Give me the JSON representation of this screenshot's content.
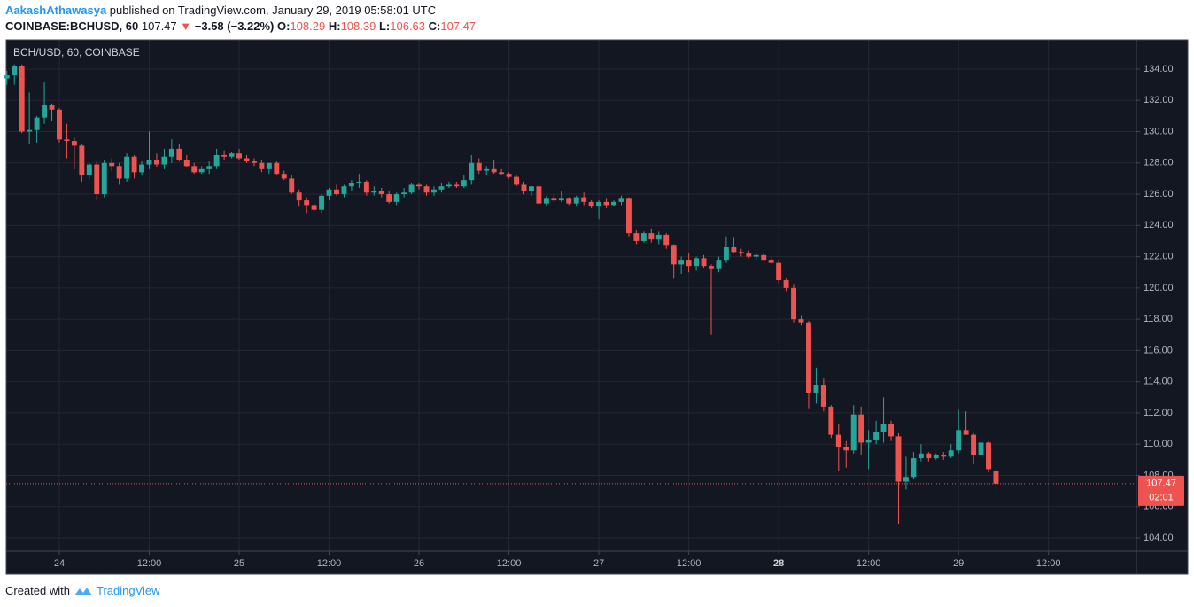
{
  "header": {
    "user": "AakashAthawasya",
    "published": "published on TradingView.com, January 29, 2019 05:58:01 UTC",
    "symbol": "COINBASE:BCHUSD, 60",
    "last": "107.47",
    "arrow": "▼",
    "change": "−3.58 (−3.22%)",
    "o_label": "O:",
    "h_label": "H:",
    "l_label": "L:",
    "c_label": "C:",
    "countdown": "02:01"
  },
  "footer": {
    "created": "Created with",
    "brand": "TradingView"
  },
  "chart_data": {
    "type": "candlestick",
    "title": "BCH/USD, 60, COINBASE",
    "up_color": "#26a69a",
    "down_color": "#ef5350",
    "background": "#131722",
    "grid": true,
    "ylim": [
      103.15,
      135.87
    ],
    "yticks": [
      {
        "value": 104,
        "label": "104.00"
      },
      {
        "value": 106,
        "label": "106.00"
      },
      {
        "value": 108,
        "label": "108.00"
      },
      {
        "value": 110,
        "label": "110.00"
      },
      {
        "value": 112,
        "label": "112.00"
      },
      {
        "value": 114,
        "label": "114.00"
      },
      {
        "value": 116,
        "label": "116.00"
      },
      {
        "value": 118,
        "label": "118.00"
      },
      {
        "value": 120,
        "label": "120.00"
      },
      {
        "value": 122,
        "label": "122.00"
      },
      {
        "value": 124,
        "label": "124.00"
      },
      {
        "value": 126,
        "label": "126.00"
      },
      {
        "value": 128,
        "label": "128.00"
      },
      {
        "value": 130,
        "label": "130.00"
      },
      {
        "value": 132,
        "label": "132.00"
      },
      {
        "value": 134,
        "label": "134.00"
      }
    ],
    "xlim": [
      -7.09,
      143.74
    ],
    "xticks": [
      {
        "value": 0,
        "label": "24"
      },
      {
        "value": 12,
        "label": "12:00"
      },
      {
        "value": 24,
        "label": "25"
      },
      {
        "value": 36,
        "label": "12:00"
      },
      {
        "value": 48,
        "label": "26"
      },
      {
        "value": 60,
        "label": "12:00"
      },
      {
        "value": 72,
        "label": "27"
      },
      {
        "value": 84,
        "label": "12:00"
      },
      {
        "value": 96,
        "label": "28",
        "bold": true
      },
      {
        "value": 108,
        "label": "12:00"
      },
      {
        "value": 120,
        "label": "29"
      },
      {
        "value": 132,
        "label": "12:00"
      }
    ],
    "candles": [
      {
        "t": -7,
        "o": 133.4,
        "h": 133.9,
        "l": 133.0,
        "c": 133.6
      },
      {
        "t": -6,
        "o": 133.6,
        "h": 134.3,
        "l": 133.0,
        "c": 134.2
      },
      {
        "t": -5,
        "o": 134.2,
        "h": 134.3,
        "l": 129.9,
        "c": 130.0
      },
      {
        "t": -4,
        "o": 130.0,
        "h": 132.5,
        "l": 129.2,
        "c": 130.1
      },
      {
        "t": -3,
        "o": 130.1,
        "h": 131.0,
        "l": 129.3,
        "c": 130.9
      },
      {
        "t": -2,
        "o": 130.9,
        "h": 133.2,
        "l": 130.5,
        "c": 131.7
      },
      {
        "t": -1,
        "o": 131.7,
        "h": 131.8,
        "l": 130.7,
        "c": 131.4
      },
      {
        "t": 0,
        "o": 131.4,
        "h": 131.5,
        "l": 129.3,
        "c": 129.5
      },
      {
        "t": 1,
        "o": 129.5,
        "h": 130.5,
        "l": 128.3,
        "c": 129.4
      },
      {
        "t": 2,
        "o": 129.4,
        "h": 129.6,
        "l": 127.6,
        "c": 129.1
      },
      {
        "t": 3,
        "o": 129.1,
        "h": 129.2,
        "l": 126.8,
        "c": 127.2
      },
      {
        "t": 4,
        "o": 127.2,
        "h": 128.0,
        "l": 127.0,
        "c": 127.9
      },
      {
        "t": 5,
        "o": 127.9,
        "h": 128.1,
        "l": 125.6,
        "c": 126.0
      },
      {
        "t": 6,
        "o": 126.0,
        "h": 128.2,
        "l": 125.8,
        "c": 128.0
      },
      {
        "t": 7,
        "o": 128.0,
        "h": 128.3,
        "l": 127.5,
        "c": 127.8
      },
      {
        "t": 8,
        "o": 127.8,
        "h": 128.0,
        "l": 126.6,
        "c": 127.0
      },
      {
        "t": 9,
        "o": 127.0,
        "h": 128.6,
        "l": 126.8,
        "c": 128.4
      },
      {
        "t": 10,
        "o": 128.4,
        "h": 128.5,
        "l": 127.0,
        "c": 127.4
      },
      {
        "t": 11,
        "o": 127.4,
        "h": 128.1,
        "l": 127.2,
        "c": 127.9
      },
      {
        "t": 12,
        "o": 127.9,
        "h": 130.0,
        "l": 127.6,
        "c": 128.2
      },
      {
        "t": 13,
        "o": 128.2,
        "h": 128.6,
        "l": 127.7,
        "c": 127.9
      },
      {
        "t": 14,
        "o": 127.9,
        "h": 128.9,
        "l": 127.6,
        "c": 128.4
      },
      {
        "t": 15,
        "o": 128.4,
        "h": 129.5,
        "l": 128.0,
        "c": 128.9
      },
      {
        "t": 16,
        "o": 128.9,
        "h": 129.2,
        "l": 128.1,
        "c": 128.2
      },
      {
        "t": 17,
        "o": 128.2,
        "h": 128.5,
        "l": 127.7,
        "c": 127.8
      },
      {
        "t": 18,
        "o": 127.8,
        "h": 128.0,
        "l": 127.3,
        "c": 127.4
      },
      {
        "t": 19,
        "o": 127.4,
        "h": 127.8,
        "l": 127.3,
        "c": 127.6
      },
      {
        "t": 20,
        "o": 127.6,
        "h": 128.1,
        "l": 127.3,
        "c": 127.8
      },
      {
        "t": 21,
        "o": 127.8,
        "h": 128.9,
        "l": 127.6,
        "c": 128.5
      },
      {
        "t": 22,
        "o": 128.5,
        "h": 128.8,
        "l": 128.2,
        "c": 128.4
      },
      {
        "t": 23,
        "o": 128.4,
        "h": 128.7,
        "l": 128.3,
        "c": 128.6
      },
      {
        "t": 24,
        "o": 128.6,
        "h": 128.9,
        "l": 128.2,
        "c": 128.3
      },
      {
        "t": 25,
        "o": 128.3,
        "h": 128.5,
        "l": 128.0,
        "c": 128.1
      },
      {
        "t": 26,
        "o": 128.1,
        "h": 128.3,
        "l": 127.8,
        "c": 128.0
      },
      {
        "t": 27,
        "o": 128.0,
        "h": 128.2,
        "l": 127.4,
        "c": 127.6
      },
      {
        "t": 28,
        "o": 127.6,
        "h": 128.0,
        "l": 127.3,
        "c": 128.0
      },
      {
        "t": 29,
        "o": 128.0,
        "h": 128.1,
        "l": 127.2,
        "c": 127.3
      },
      {
        "t": 30,
        "o": 127.3,
        "h": 127.5,
        "l": 126.9,
        "c": 127.0
      },
      {
        "t": 31,
        "o": 127.0,
        "h": 127.2,
        "l": 126.0,
        "c": 126.1
      },
      {
        "t": 32,
        "o": 126.1,
        "h": 126.3,
        "l": 125.2,
        "c": 125.6
      },
      {
        "t": 33,
        "o": 125.6,
        "h": 125.8,
        "l": 124.8,
        "c": 125.3
      },
      {
        "t": 34,
        "o": 125.3,
        "h": 125.4,
        "l": 124.9,
        "c": 125.0
      },
      {
        "t": 35,
        "o": 125.0,
        "h": 126.0,
        "l": 124.8,
        "c": 125.9
      },
      {
        "t": 36,
        "o": 125.9,
        "h": 126.4,
        "l": 125.6,
        "c": 126.3
      },
      {
        "t": 37,
        "o": 126.3,
        "h": 126.6,
        "l": 125.9,
        "c": 126.0
      },
      {
        "t": 38,
        "o": 126.0,
        "h": 126.6,
        "l": 125.8,
        "c": 126.5
      },
      {
        "t": 39,
        "o": 126.5,
        "h": 126.9,
        "l": 126.2,
        "c": 126.7
      },
      {
        "t": 40,
        "o": 126.7,
        "h": 127.3,
        "l": 126.4,
        "c": 126.8
      },
      {
        "t": 41,
        "o": 126.8,
        "h": 126.9,
        "l": 125.9,
        "c": 126.1
      },
      {
        "t": 42,
        "o": 126.1,
        "h": 126.5,
        "l": 125.9,
        "c": 126.2
      },
      {
        "t": 43,
        "o": 126.2,
        "h": 126.4,
        "l": 125.8,
        "c": 126.0
      },
      {
        "t": 44,
        "o": 126.0,
        "h": 126.2,
        "l": 125.4,
        "c": 125.5
      },
      {
        "t": 45,
        "o": 125.5,
        "h": 126.1,
        "l": 125.3,
        "c": 126.0
      },
      {
        "t": 46,
        "o": 126.0,
        "h": 126.4,
        "l": 125.8,
        "c": 126.1
      },
      {
        "t": 47,
        "o": 126.1,
        "h": 126.7,
        "l": 126.0,
        "c": 126.6
      },
      {
        "t": 48,
        "o": 126.6,
        "h": 126.7,
        "l": 126.3,
        "c": 126.5
      },
      {
        "t": 49,
        "o": 126.5,
        "h": 126.6,
        "l": 125.9,
        "c": 126.1
      },
      {
        "t": 50,
        "o": 126.1,
        "h": 126.5,
        "l": 125.9,
        "c": 126.3
      },
      {
        "t": 51,
        "o": 126.3,
        "h": 126.7,
        "l": 126.1,
        "c": 126.5
      },
      {
        "t": 52,
        "o": 126.5,
        "h": 126.8,
        "l": 126.4,
        "c": 126.6
      },
      {
        "t": 53,
        "o": 126.6,
        "h": 126.8,
        "l": 126.4,
        "c": 126.5
      },
      {
        "t": 54,
        "o": 126.5,
        "h": 127.2,
        "l": 126.4,
        "c": 126.9
      },
      {
        "t": 55,
        "o": 126.9,
        "h": 128.5,
        "l": 126.6,
        "c": 128.0
      },
      {
        "t": 56,
        "o": 128.0,
        "h": 128.3,
        "l": 127.3,
        "c": 127.5
      },
      {
        "t": 57,
        "o": 127.5,
        "h": 127.8,
        "l": 127.2,
        "c": 127.6
      },
      {
        "t": 58,
        "o": 127.6,
        "h": 128.2,
        "l": 127.3,
        "c": 127.4
      },
      {
        "t": 59,
        "o": 127.4,
        "h": 127.6,
        "l": 127.2,
        "c": 127.3
      },
      {
        "t": 60,
        "o": 127.3,
        "h": 127.4,
        "l": 127.0,
        "c": 127.1
      },
      {
        "t": 61,
        "o": 127.1,
        "h": 127.2,
        "l": 126.5,
        "c": 126.6
      },
      {
        "t": 62,
        "o": 126.6,
        "h": 126.8,
        "l": 126.0,
        "c": 126.2
      },
      {
        "t": 63,
        "o": 126.2,
        "h": 126.5,
        "l": 125.9,
        "c": 126.5
      },
      {
        "t": 64,
        "o": 126.5,
        "h": 126.6,
        "l": 125.2,
        "c": 125.4
      },
      {
        "t": 65,
        "o": 125.4,
        "h": 125.9,
        "l": 125.2,
        "c": 125.7
      },
      {
        "t": 66,
        "o": 125.7,
        "h": 126.0,
        "l": 125.5,
        "c": 125.6
      },
      {
        "t": 67,
        "o": 125.6,
        "h": 126.2,
        "l": 125.5,
        "c": 125.7
      },
      {
        "t": 68,
        "o": 125.7,
        "h": 125.8,
        "l": 125.3,
        "c": 125.4
      },
      {
        "t": 69,
        "o": 125.4,
        "h": 125.9,
        "l": 125.2,
        "c": 125.8
      },
      {
        "t": 70,
        "o": 125.8,
        "h": 126.1,
        "l": 125.3,
        "c": 125.5
      },
      {
        "t": 71,
        "o": 125.5,
        "h": 125.6,
        "l": 125.1,
        "c": 125.2
      },
      {
        "t": 72,
        "o": 125.2,
        "h": 125.6,
        "l": 124.4,
        "c": 125.5
      },
      {
        "t": 73,
        "o": 125.5,
        "h": 125.7,
        "l": 125.1,
        "c": 125.3
      },
      {
        "t": 74,
        "o": 125.3,
        "h": 125.6,
        "l": 125.2,
        "c": 125.5
      },
      {
        "t": 75,
        "o": 125.5,
        "h": 125.9,
        "l": 125.3,
        "c": 125.7
      },
      {
        "t": 76,
        "o": 125.7,
        "h": 125.8,
        "l": 123.3,
        "c": 123.5
      },
      {
        "t": 77,
        "o": 123.5,
        "h": 123.7,
        "l": 122.8,
        "c": 123.0
      },
      {
        "t": 78,
        "o": 123.0,
        "h": 123.6,
        "l": 122.9,
        "c": 123.5
      },
      {
        "t": 79,
        "o": 123.5,
        "h": 123.8,
        "l": 122.9,
        "c": 123.1
      },
      {
        "t": 80,
        "o": 123.1,
        "h": 123.6,
        "l": 122.8,
        "c": 123.4
      },
      {
        "t": 81,
        "o": 123.4,
        "h": 123.5,
        "l": 122.5,
        "c": 122.7
      },
      {
        "t": 82,
        "o": 122.7,
        "h": 122.8,
        "l": 120.6,
        "c": 121.5
      },
      {
        "t": 83,
        "o": 121.5,
        "h": 122.0,
        "l": 120.9,
        "c": 121.8
      },
      {
        "t": 84,
        "o": 121.8,
        "h": 122.2,
        "l": 121.0,
        "c": 121.4
      },
      {
        "t": 85,
        "o": 121.4,
        "h": 122.0,
        "l": 121.1,
        "c": 121.9
      },
      {
        "t": 86,
        "o": 121.9,
        "h": 122.1,
        "l": 121.3,
        "c": 121.4
      },
      {
        "t": 87,
        "o": 121.4,
        "h": 121.5,
        "l": 117.0,
        "c": 121.2
      },
      {
        "t": 88,
        "o": 121.2,
        "h": 122.0,
        "l": 121.0,
        "c": 121.8
      },
      {
        "t": 89,
        "o": 121.8,
        "h": 123.3,
        "l": 121.6,
        "c": 122.6
      },
      {
        "t": 90,
        "o": 122.6,
        "h": 123.2,
        "l": 122.2,
        "c": 122.3
      },
      {
        "t": 91,
        "o": 122.3,
        "h": 122.5,
        "l": 122.0,
        "c": 122.2
      },
      {
        "t": 92,
        "o": 122.2,
        "h": 122.4,
        "l": 121.9,
        "c": 122.0
      },
      {
        "t": 93,
        "o": 122.0,
        "h": 122.2,
        "l": 121.8,
        "c": 122.1
      },
      {
        "t": 94,
        "o": 122.1,
        "h": 122.2,
        "l": 121.7,
        "c": 121.8
      },
      {
        "t": 95,
        "o": 121.8,
        "h": 122.0,
        "l": 121.5,
        "c": 121.6
      },
      {
        "t": 96,
        "o": 121.6,
        "h": 121.8,
        "l": 120.3,
        "c": 120.5
      },
      {
        "t": 97,
        "o": 120.5,
        "h": 120.6,
        "l": 119.8,
        "c": 120.0
      },
      {
        "t": 98,
        "o": 120.0,
        "h": 120.2,
        "l": 117.8,
        "c": 118.0
      },
      {
        "t": 99,
        "o": 118.0,
        "h": 118.2,
        "l": 117.6,
        "c": 117.8
      },
      {
        "t": 100,
        "o": 117.8,
        "h": 117.9,
        "l": 112.3,
        "c": 113.3
      },
      {
        "t": 101,
        "o": 113.3,
        "h": 114.9,
        "l": 112.6,
        "c": 113.8
      },
      {
        "t": 102,
        "o": 113.8,
        "h": 114.2,
        "l": 112.1,
        "c": 112.4
      },
      {
        "t": 103,
        "o": 112.4,
        "h": 112.5,
        "l": 110.4,
        "c": 110.6
      },
      {
        "t": 104,
        "o": 110.6,
        "h": 111.3,
        "l": 108.3,
        "c": 109.8
      },
      {
        "t": 105,
        "o": 109.8,
        "h": 110.2,
        "l": 108.5,
        "c": 109.6
      },
      {
        "t": 106,
        "o": 109.6,
        "h": 112.5,
        "l": 109.4,
        "c": 111.9
      },
      {
        "t": 107,
        "o": 111.9,
        "h": 112.4,
        "l": 109.3,
        "c": 110.1
      },
      {
        "t": 108,
        "o": 110.1,
        "h": 110.9,
        "l": 108.4,
        "c": 110.3
      },
      {
        "t": 109,
        "o": 110.3,
        "h": 111.5,
        "l": 110.0,
        "c": 110.8
      },
      {
        "t": 110,
        "o": 110.8,
        "h": 113.0,
        "l": 110.1,
        "c": 111.3
      },
      {
        "t": 111,
        "o": 111.3,
        "h": 111.5,
        "l": 110.2,
        "c": 110.5
      },
      {
        "t": 112,
        "o": 110.5,
        "h": 110.7,
        "l": 104.9,
        "c": 107.6
      },
      {
        "t": 113,
        "o": 107.6,
        "h": 109.2,
        "l": 107.1,
        "c": 107.9
      },
      {
        "t": 114,
        "o": 107.9,
        "h": 109.5,
        "l": 107.8,
        "c": 109.1
      },
      {
        "t": 115,
        "o": 109.1,
        "h": 110.0,
        "l": 108.9,
        "c": 109.4
      },
      {
        "t": 116,
        "o": 109.4,
        "h": 109.5,
        "l": 108.9,
        "c": 109.1
      },
      {
        "t": 117,
        "o": 109.1,
        "h": 109.4,
        "l": 109.0,
        "c": 109.3
      },
      {
        "t": 118,
        "o": 109.3,
        "h": 109.5,
        "l": 109.0,
        "c": 109.2
      },
      {
        "t": 119,
        "o": 109.2,
        "h": 110.0,
        "l": 109.1,
        "c": 109.6
      },
      {
        "t": 120,
        "o": 109.6,
        "h": 112.2,
        "l": 109.4,
        "c": 110.9
      },
      {
        "t": 121,
        "o": 110.9,
        "h": 112.1,
        "l": 110.6,
        "c": 110.6
      },
      {
        "t": 122,
        "o": 110.6,
        "h": 110.7,
        "l": 108.7,
        "c": 109.3
      },
      {
        "t": 123,
        "o": 109.3,
        "h": 110.4,
        "l": 109.0,
        "c": 110.1
      },
      {
        "t": 124,
        "o": 110.1,
        "h": 110.2,
        "l": 108.2,
        "c": 108.4
      },
      {
        "t": 125,
        "o": 108.29,
        "h": 108.39,
        "l": 106.63,
        "c": 107.47
      }
    ]
  }
}
